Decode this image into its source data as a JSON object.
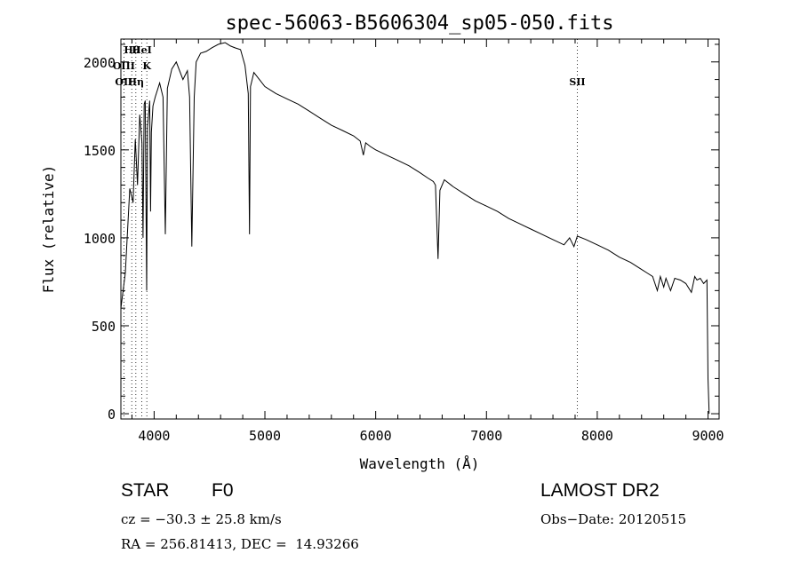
{
  "chart_data": {
    "type": "line",
    "title": "spec-56063-B5606304_sp05-050.fits",
    "xlabel": "Wavelength (Å)",
    "ylabel": "Flux (relative)",
    "xlim": [
      3700,
      9100
    ],
    "ylim": [
      -30,
      2130
    ],
    "xticks": [
      4000,
      5000,
      6000,
      7000,
      8000,
      9000
    ],
    "yticks": [
      0,
      500,
      1000,
      1500,
      2000
    ],
    "grid": false,
    "series": [
      {
        "x": [
          3700,
          3740,
          3780,
          3810,
          3830,
          3850,
          3870,
          3890,
          3900,
          3910,
          3920,
          3933,
          3940,
          3960,
          3968,
          3975,
          3990,
          4010,
          4050,
          4080,
          4101,
          4120,
          4160,
          4200,
          4260,
          4300,
          4320,
          4340,
          4362,
          4380,
          4420,
          4470,
          4520,
          4580,
          4640,
          4690,
          4730,
          4780,
          4820,
          4850,
          4861,
          4870,
          4900,
          4950,
          5000,
          5100,
          5200,
          5300,
          5400,
          5500,
          5600,
          5700,
          5800,
          5860,
          5889,
          5910,
          5950,
          6000,
          6100,
          6200,
          6300,
          6400,
          6470,
          6520,
          6540,
          6563,
          6580,
          6620,
          6700,
          6800,
          6900,
          7000,
          7100,
          7200,
          7300,
          7400,
          7500,
          7600,
          7700,
          7750,
          7790,
          7820,
          7900,
          8000,
          8100,
          8200,
          8300,
          8400,
          8450,
          8500,
          8542,
          8570,
          8600,
          8620,
          8662,
          8700,
          8750,
          8800,
          8850,
          8880,
          8900,
          8930,
          8960,
          8990,
          9000,
          9010
        ],
        "values": [
          600,
          800,
          1280,
          1200,
          1560,
          1300,
          1700,
          1540,
          1000,
          1760,
          1780,
          700,
          1630,
          1780,
          1150,
          1600,
          1750,
          1800,
          1880,
          1800,
          1020,
          1850,
          1960,
          2000,
          1900,
          1950,
          1800,
          950,
          1800,
          2000,
          2050,
          2060,
          2080,
          2100,
          2110,
          2090,
          2080,
          2070,
          1980,
          1820,
          1020,
          1860,
          1940,
          1900,
          1860,
          1820,
          1790,
          1760,
          1720,
          1680,
          1640,
          1610,
          1580,
          1550,
          1470,
          1540,
          1520,
          1500,
          1470,
          1440,
          1410,
          1370,
          1340,
          1320,
          1300,
          880,
          1270,
          1330,
          1290,
          1250,
          1210,
          1180,
          1150,
          1110,
          1080,
          1050,
          1020,
          990,
          960,
          1000,
          950,
          1010,
          990,
          960,
          930,
          890,
          860,
          820,
          800,
          780,
          700,
          780,
          720,
          770,
          700,
          770,
          760,
          740,
          690,
          780,
          760,
          770,
          740,
          760,
          200,
          0
        ]
      }
    ],
    "annotations": [
      {
        "label": "Hθ",
        "x": 3798
      },
      {
        "label": "K",
        "x": 3934
      },
      {
        "label": "OII",
        "x": 3727
      },
      {
        "label": "HeI",
        "x": 3889
      },
      {
        "label": "OIII",
        "x": 3727
      },
      {
        "label": "Hη",
        "x": 3835
      },
      {
        "label": "SII",
        "x": 7820
      }
    ]
  },
  "info": {
    "object_type": "STAR",
    "subclass": "F0",
    "survey": "LAMOST DR2",
    "redshift_line": "cz = −30.3 ± 25.8 km/s",
    "obs_date_line": "Obs−Date: 20120515",
    "coords_line": "RA = 256.81413, DEC =  14.93266"
  }
}
